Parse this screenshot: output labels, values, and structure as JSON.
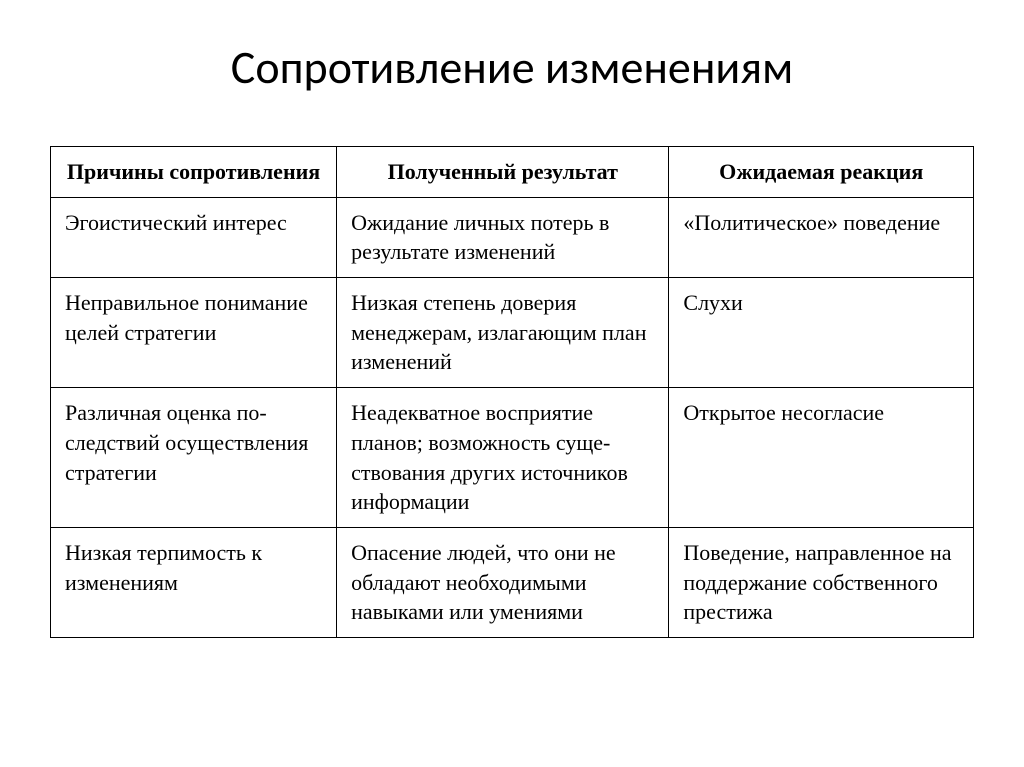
{
  "title": "Сопротивление изменениям",
  "table": {
    "columns": [
      "Причины сопротивления",
      "Полученный результат",
      "Ожидаемая реакция"
    ],
    "rows": [
      [
        "Эгоистический интерес",
        "Ожидание личных потерь в результате изменений",
        "«Политическое» пове­дение"
      ],
      [
        "Неправильное понима­ние целей стратегии",
        "Низкая степень доверия менеджерам, излагающим план изменений",
        "Слухи"
      ],
      [
        "Различная оценка по­следствий осуществле­ния стратегии",
        "Неадекватное восприятие планов; возможность суще­ствования других источни­ков информации",
        "Открытое несогласие"
      ],
      [
        "Низкая терпимость к изменениям",
        "Опасение людей, что они не обладают необходимыми навыками или умениями",
        "Поведение, направлен­ное на поддержание собственного престижа"
      ]
    ],
    "styling": {
      "border_color": "#000000",
      "border_width": 1.5,
      "background_color": "#ffffff",
      "header_font_weight": "bold",
      "header_align": "center",
      "cell_align": "left",
      "cell_font_size": 22,
      "title_font_size": 46,
      "title_font_family": "Calibri",
      "column_widths_pct": [
        31,
        36,
        33
      ]
    }
  }
}
